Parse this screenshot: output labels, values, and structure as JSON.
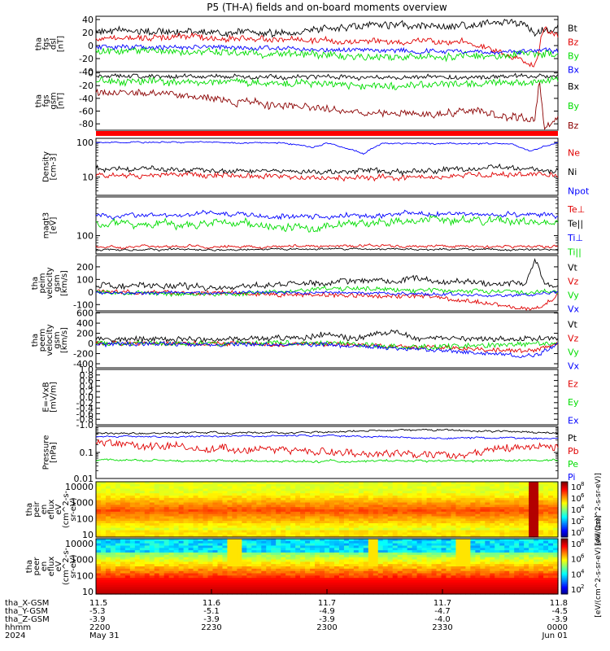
{
  "title": "P5 (TH-A) fields and on-board moments overview",
  "colors": {
    "black": "#000000",
    "red": "#e00000",
    "green": "#00dd00",
    "blue": "#0000ff",
    "darkred": "#8b0000"
  },
  "chart_data": [
    {
      "id": "fgs-dsl",
      "type": "line",
      "ylabel": [
        "tha",
        "fgs",
        "dsl",
        "[nT]"
      ],
      "ylim": [
        -40,
        45
      ],
      "yticks": [
        -40,
        -20,
        0,
        20,
        40
      ],
      "series": [
        {
          "name": "Bt",
          "color": "#000000",
          "base": 24,
          "amp": 5,
          "wave": 3,
          "seed": 11,
          "keys": [
            [
              0,
              22
            ],
            [
              0.25,
              20
            ],
            [
              0.4,
              18
            ],
            [
              0.5,
              26
            ],
            [
              0.6,
              33
            ],
            [
              0.75,
              30
            ],
            [
              0.85,
              33
            ],
            [
              0.92,
              36
            ],
            [
              0.95,
              20
            ],
            [
              1,
              28
            ]
          ]
        },
        {
          "name": "Bz",
          "color": "#e00000",
          "base": 12,
          "amp": 4,
          "wave": 3,
          "seed": 12,
          "keys": [
            [
              0,
              12
            ],
            [
              0.2,
              14
            ],
            [
              0.4,
              10
            ],
            [
              0.6,
              6
            ],
            [
              0.8,
              6
            ],
            [
              0.95,
              -30
            ],
            [
              0.97,
              30
            ],
            [
              1,
              14
            ]
          ]
        },
        {
          "name": "By",
          "color": "#00dd00",
          "base": -10,
          "amp": 5,
          "wave": 3,
          "seed": 13,
          "keys": [
            [
              0,
              -8
            ],
            [
              0.3,
              -10
            ],
            [
              0.5,
              -15
            ],
            [
              0.7,
              -18
            ],
            [
              0.9,
              -15
            ],
            [
              1,
              -12
            ]
          ]
        },
        {
          "name": "Bx",
          "color": "#0000ff",
          "base": -5,
          "amp": 3,
          "wave": 2,
          "seed": 14,
          "keys": [
            [
              0,
              -3
            ],
            [
              0.3,
              -2
            ],
            [
              0.5,
              -6
            ],
            [
              0.7,
              -8
            ],
            [
              0.9,
              -10
            ],
            [
              1,
              -8
            ]
          ]
        }
      ]
    },
    {
      "id": "fgs-gsm",
      "type": "line",
      "ylabel": [
        "tha",
        "fgs",
        "gsm",
        "[nT]"
      ],
      "ylim": [
        -90,
        2
      ],
      "yticks": [
        -80,
        -60,
        -40,
        -20,
        0
      ],
      "series": [
        {
          "name": "Bx",
          "color": "#000000",
          "base": -5,
          "amp": 3,
          "wave": 2,
          "seed": 21,
          "keys": [
            [
              0,
              -4
            ],
            [
              0.3,
              -6
            ],
            [
              0.6,
              -8
            ],
            [
              0.8,
              -6
            ],
            [
              1,
              -5
            ]
          ]
        },
        {
          "name": "By",
          "color": "#00dd00",
          "base": -15,
          "amp": 5,
          "wave": 3,
          "seed": 22,
          "keys": [
            [
              0,
              -12
            ],
            [
              0.3,
              -14
            ],
            [
              0.5,
              -18
            ],
            [
              0.7,
              -20
            ],
            [
              0.9,
              -15
            ],
            [
              1,
              -10
            ]
          ]
        },
        {
          "name": "Bz",
          "color": "#8b0000",
          "base": -35,
          "amp": 5,
          "wave": 4,
          "seed": 23,
          "keys": [
            [
              0,
              -30
            ],
            [
              0.15,
              -30
            ],
            [
              0.3,
              -45
            ],
            [
              0.5,
              -58
            ],
            [
              0.65,
              -65
            ],
            [
              0.8,
              -60
            ],
            [
              0.95,
              -75
            ],
            [
              0.96,
              -10
            ],
            [
              0.97,
              -88
            ],
            [
              1,
              -75
            ]
          ]
        }
      ]
    },
    {
      "id": "density",
      "type": "line",
      "scale": "log",
      "ylabel": [
        "Density",
        "[cm-3]"
      ],
      "ylim": [
        3,
        130
      ],
      "yticks": [
        10,
        100
      ],
      "series": [
        {
          "name": "Ne",
          "color": "#e00000",
          "base": 11,
          "amp": 0.12,
          "wave": 0.05,
          "seed": 31,
          "keys": [
            [
              0,
              12
            ],
            [
              0.3,
              11
            ],
            [
              0.5,
              9
            ],
            [
              0.7,
              10
            ],
            [
              0.9,
              12
            ],
            [
              1,
              11
            ]
          ]
        },
        {
          "name": "Ni",
          "color": "#000000",
          "base": 17,
          "amp": 0.12,
          "wave": 0.06,
          "seed": 32,
          "keys": [
            [
              0,
              18
            ],
            [
              0.3,
              16
            ],
            [
              0.5,
              14
            ],
            [
              0.7,
              15
            ],
            [
              0.9,
              18
            ],
            [
              1,
              14
            ]
          ]
        },
        {
          "name": "Npot",
          "color": "#0000ff",
          "base": 100,
          "amp": 0.03,
          "wave": 0.02,
          "seed": 33,
          "keys": [
            [
              0,
              100
            ],
            [
              0.4,
              98
            ],
            [
              0.47,
              70
            ],
            [
              0.5,
              95
            ],
            [
              0.58,
              45
            ],
            [
              0.62,
              95
            ],
            [
              0.9,
              90
            ],
            [
              0.94,
              55
            ],
            [
              1,
              95
            ]
          ]
        }
      ]
    },
    {
      "id": "temp",
      "type": "line",
      "scale": "log",
      "ylabel": [
        "magt3",
        "[eV]"
      ],
      "ylim": [
        40,
        700
      ],
      "yticks": [
        100
      ],
      "series": [
        {
          "name": "Te⊥",
          "color": "#e00000",
          "base": 58,
          "amp": 0.04,
          "wave": 0.03,
          "seed": 41,
          "keys": [
            [
              0,
              56
            ],
            [
              0.5,
              60
            ],
            [
              1,
              58
            ]
          ]
        },
        {
          "name": "Te||",
          "color": "#000000",
          "base": 50,
          "amp": 0.03,
          "wave": 0.02,
          "seed": 42,
          "keys": [
            [
              0,
              49
            ],
            [
              0.5,
              51
            ],
            [
              1,
              50
            ]
          ]
        },
        {
          "name": "Ti⊥",
          "color": "#0000ff",
          "base": 280,
          "amp": 0.08,
          "wave": 0.05,
          "seed": 43,
          "keys": [
            [
              0,
              270
            ],
            [
              0.3,
              300
            ],
            [
              0.5,
              260
            ],
            [
              0.7,
              300
            ],
            [
              1,
              290
            ]
          ]
        },
        {
          "name": "Ti||",
          "color": "#00dd00",
          "base": 200,
          "amp": 0.12,
          "wave": 0.08,
          "seed": 44,
          "keys": [
            [
              0,
              190
            ],
            [
              0.3,
              180
            ],
            [
              0.45,
              130
            ],
            [
              0.55,
              200
            ],
            [
              0.7,
              220
            ],
            [
              1,
              200
            ]
          ]
        }
      ]
    },
    {
      "id": "peim",
      "type": "line",
      "ylabel": [
        "tha",
        "peim",
        "velocity",
        "gsm",
        "[km/s]"
      ],
      "ylim": [
        -150,
        290
      ],
      "yticks": [
        -100,
        0,
        100,
        200
      ],
      "series": [
        {
          "name": "Vt",
          "color": "#000000",
          "base": 60,
          "amp": 20,
          "wave": 15,
          "seed": 51,
          "keys": [
            [
              0,
              50
            ],
            [
              0.3,
              40
            ],
            [
              0.5,
              80
            ],
            [
              0.7,
              100
            ],
            [
              0.93,
              60
            ],
            [
              0.95,
              280
            ],
            [
              0.97,
              60
            ],
            [
              1,
              70
            ]
          ]
        },
        {
          "name": "Vz",
          "color": "#e00000",
          "base": 0,
          "amp": 15,
          "wave": 10,
          "seed": 52,
          "keys": [
            [
              0,
              0
            ],
            [
              0.3,
              -10
            ],
            [
              0.5,
              -20
            ],
            [
              0.75,
              -40
            ],
            [
              0.95,
              -140
            ],
            [
              1,
              -20
            ]
          ]
        },
        {
          "name": "Vy",
          "color": "#00dd00",
          "base": 0,
          "amp": 15,
          "wave": 10,
          "seed": 53,
          "keys": [
            [
              0,
              0
            ],
            [
              0.3,
              -20
            ],
            [
              0.5,
              30
            ],
            [
              0.7,
              10
            ],
            [
              1,
              0
            ]
          ]
        },
        {
          "name": "Vx",
          "color": "#0000ff",
          "base": -5,
          "amp": 10,
          "wave": 8,
          "seed": 54,
          "keys": [
            [
              0,
              -10
            ],
            [
              0.5,
              0
            ],
            [
              0.9,
              -30
            ],
            [
              1,
              -10
            ]
          ]
        }
      ]
    },
    {
      "id": "peem",
      "type": "line",
      "ylabel": [
        "tha",
        "peem",
        "velocity",
        "gsm",
        "[km/s]"
      ],
      "ylim": [
        -480,
        610
      ],
      "yticks": [
        -400,
        -200,
        0,
        200,
        400,
        600
      ],
      "series": [
        {
          "name": "Vt",
          "color": "#000000",
          "base": 80,
          "amp": 50,
          "wave": 20,
          "seed": 61,
          "keys": [
            [
              0,
              80
            ],
            [
              0.45,
              100
            ],
            [
              0.5,
              200
            ],
            [
              0.55,
              100
            ],
            [
              0.65,
              250
            ],
            [
              0.7,
              100
            ],
            [
              1,
              90
            ]
          ]
        },
        {
          "name": "Vz",
          "color": "#e00000",
          "base": 0,
          "amp": 40,
          "wave": 15,
          "seed": 62,
          "keys": [
            [
              0,
              0
            ],
            [
              0.5,
              -10
            ],
            [
              0.95,
              -150
            ],
            [
              1,
              0
            ]
          ]
        },
        {
          "name": "Vy",
          "color": "#00dd00",
          "base": 0,
          "amp": 45,
          "wave": 15,
          "seed": 63,
          "keys": [
            [
              0,
              0
            ],
            [
              0.5,
              10
            ],
            [
              0.7,
              -80
            ],
            [
              1,
              0
            ]
          ]
        },
        {
          "name": "Vx",
          "color": "#0000ff",
          "base": -10,
          "amp": 40,
          "wave": 15,
          "seed": 64,
          "keys": [
            [
              0,
              -10
            ],
            [
              0.5,
              -20
            ],
            [
              0.95,
              -250
            ],
            [
              1,
              -20
            ]
          ]
        }
      ]
    },
    {
      "id": "efield",
      "type": "line",
      "ylabel": [
        "E=-VxB",
        "[mV/m]"
      ],
      "ylim": [
        -1.0,
        1.0
      ],
      "yticks": [
        -1.0,
        -0.8,
        -0.6,
        -0.4,
        -0.2,
        0.0,
        0.2,
        0.4,
        0.6,
        0.8,
        1.0
      ],
      "series": [
        {
          "name": "Ez",
          "color": "#e00000",
          "keys": []
        },
        {
          "name": "Ey",
          "color": "#00dd00",
          "keys": []
        },
        {
          "name": "Ex",
          "color": "#0000ff",
          "keys": []
        }
      ]
    },
    {
      "id": "pressure",
      "type": "line",
      "scale": "log",
      "ylabel": [
        "Pressure",
        "[nPa]"
      ],
      "ylim": [
        0.01,
        1.0
      ],
      "yticks": [
        0.01,
        0.1
      ],
      "series": [
        {
          "name": "Pt",
          "color": "#000000",
          "base": 0.6,
          "amp": 0.05,
          "wave": 0.03,
          "seed": 71,
          "keys": [
            [
              0,
              0.55
            ],
            [
              0.5,
              0.6
            ],
            [
              0.7,
              0.75
            ],
            [
              1,
              0.55
            ]
          ]
        },
        {
          "name": "Pb",
          "color": "#e00000",
          "base": 0.15,
          "amp": 0.25,
          "wave": 0.1,
          "seed": 72,
          "keys": [
            [
              0,
              0.25
            ],
            [
              0.2,
              0.15
            ],
            [
              0.4,
              0.12
            ],
            [
              0.6,
              0.08
            ],
            [
              0.8,
              0.08
            ],
            [
              1,
              0.2
            ]
          ]
        },
        {
          "name": "Pe",
          "color": "#00dd00",
          "base": 0.05,
          "amp": 0.06,
          "wave": 0.04,
          "seed": 73,
          "keys": [
            [
              0,
              0.05
            ],
            [
              0.5,
              0.045
            ],
            [
              1,
              0.05
            ]
          ]
        },
        {
          "name": "Pi",
          "color": "#0000ff",
          "base": 0.4,
          "amp": 0.05,
          "wave": 0.03,
          "seed": 74,
          "keys": [
            [
              0,
              0.4
            ],
            [
              0.5,
              0.45
            ],
            [
              0.7,
              0.35
            ],
            [
              1,
              0.35
            ]
          ]
        }
      ]
    },
    {
      "id": "peir",
      "type": "heatmap",
      "scale": "log",
      "ylabel": [
        "tha",
        "peir",
        "en",
        "eflux",
        "eV",
        "(cm^2-s-",
        "sr-eV)"
      ],
      "ylim": [
        7,
        20000
      ],
      "yticks": [
        10,
        100,
        1000,
        10000
      ],
      "colorbar": {
        "label": "[eV/(cm^2-s-sr-eV)]",
        "ticks": [
          "10",
          "10",
          "10",
          "10",
          "10"
        ],
        "exponents": [
          "8",
          "6",
          "4",
          "2",
          "0"
        ],
        "log_range": [
          0,
          8
        ]
      }
    },
    {
      "id": "peer",
      "type": "heatmap",
      "scale": "log",
      "ylabel": [
        "tha",
        "peer",
        "en",
        "eflux",
        "eV",
        "(cm^2-s-",
        "sr-eV)"
      ],
      "ylim": [
        7,
        20000
      ],
      "yticks": [
        10,
        100,
        1000,
        10000
      ],
      "colorbar": {
        "label": "[eV/(cm^2-s-sr-eV) (All Qs)]",
        "ticks": [
          "10",
          "10",
          "10",
          "10"
        ],
        "exponents": [
          "8",
          "6",
          "4",
          "2"
        ],
        "log_range": [
          2,
          8
        ]
      }
    }
  ],
  "xaxis": {
    "row_labels": [
      "tha_X-GSM",
      "tha_Y-GSM",
      "tha_Z-GSM",
      "hhmm",
      "2024"
    ],
    "ticks": [
      {
        "f": 0.0,
        "rows": [
          "11.5",
          "-5.3",
          "-3.9",
          "2200",
          "May 31"
        ]
      },
      {
        "f": 0.25,
        "rows": [
          "11.6",
          "-5.1",
          "-3.9",
          "2230",
          ""
        ]
      },
      {
        "f": 0.5,
        "rows": [
          "11.7",
          "-4.9",
          "-3.9",
          "2300",
          ""
        ]
      },
      {
        "f": 0.75,
        "rows": [
          "11.7",
          "-4.7",
          "-4.0",
          "2330",
          ""
        ]
      },
      {
        "f": 1.0,
        "rows": [
          "11.8",
          "-4.5",
          "-3.9",
          "0000",
          "Jun 01"
        ]
      }
    ]
  }
}
